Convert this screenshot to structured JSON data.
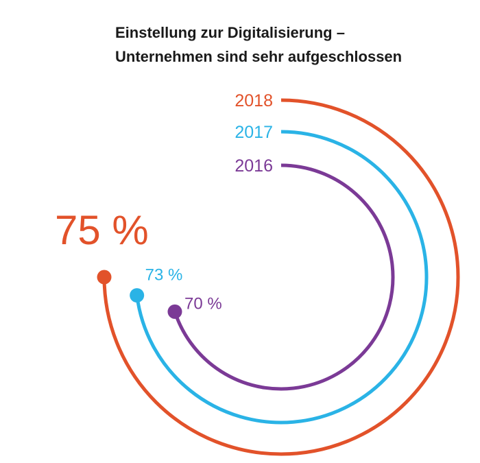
{
  "title_line1": "Einstellung zur Digitalisierung –",
  "title_line2": "Unternehmen sind sehr aufgeschlossen",
  "chart_data": {
    "type": "radial-bar",
    "title": "Einstellung zur Digitalisierung – Unternehmen sind sehr aufgeschlossen",
    "unit": "%",
    "series": [
      {
        "year": "2018",
        "value": 75,
        "label": "75 %",
        "color": "#e2522a"
      },
      {
        "year": "2017",
        "value": 73,
        "label": "73 %",
        "color": "#2ab3e6"
      },
      {
        "year": "2016",
        "value": 70,
        "label": "70 %",
        "color": "#7b3a96"
      }
    ]
  }
}
